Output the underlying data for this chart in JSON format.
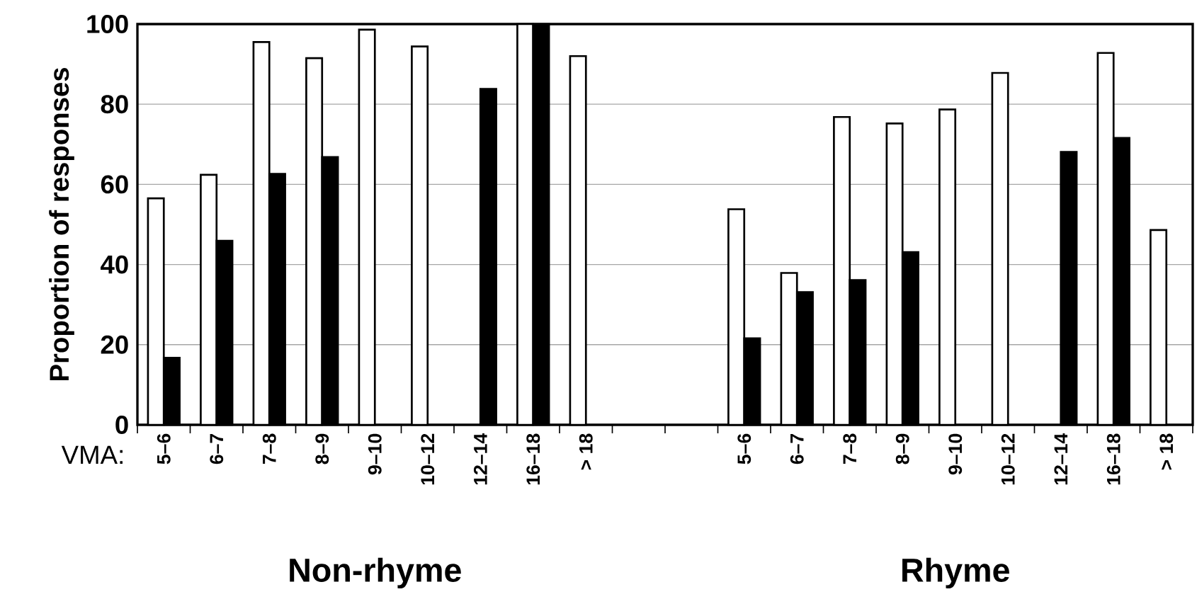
{
  "chart_data": {
    "type": "bar",
    "ylabel": "Proportion of responses",
    "categories": [
      "5–6",
      "6–7",
      "7–8",
      "8–9",
      "9–10",
      "10–12",
      "12–14",
      "16–18",
      "> 18",
      null,
      null,
      "5–6",
      "6–7",
      "7–8",
      "8–9",
      "9–10",
      "10–12",
      "12–14",
      "16–18",
      "> 18"
    ],
    "series": [
      {
        "color": "#ffffff",
        "values": [
          56.5,
          62.4,
          95.5,
          91.5,
          98.6,
          94.4,
          null,
          100,
          92,
          null,
          null,
          53.8,
          37.9,
          76.8,
          75.2,
          78.7,
          87.8,
          null,
          92.8,
          48.6
        ]
      },
      {
        "color": "#000000",
        "values": [
          16.7,
          45.9,
          62.6,
          66.8,
          null,
          null,
          83.8,
          100,
          null,
          null,
          null,
          21.6,
          33.1,
          36.1,
          43.1,
          null,
          null,
          68.1,
          71.6,
          null
        ]
      }
    ],
    "ylim": [
      0,
      100
    ],
    "yticks": [
      0,
      20,
      40,
      60,
      80,
      100
    ],
    "grid": "y",
    "annotations": [
      "VMA:",
      "Non-rhyme",
      "Rhyme"
    ]
  }
}
